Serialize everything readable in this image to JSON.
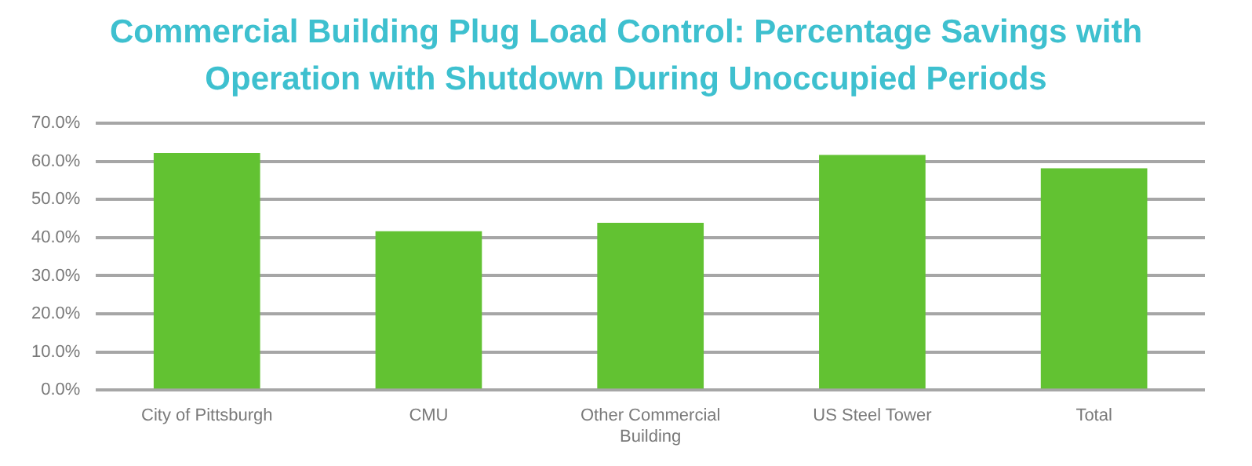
{
  "chart_data": {
    "type": "bar",
    "title": "Commercial Building Plug Load Control: Percentage Savings with Operation with Shutdown During Unoccupied Periods",
    "categories": [
      "City of Pittsburgh",
      "CMU",
      "Other Commercial Building",
      "US Steel Tower",
      "Total"
    ],
    "values": [
      62.2,
      41.7,
      43.9,
      61.7,
      58.2
    ],
    "color": "#62c232",
    "ylim": [
      0,
      70
    ],
    "yticks": [
      {
        "value": 0,
        "label": "0.0%"
      },
      {
        "value": 10,
        "label": "10.0%"
      },
      {
        "value": 20,
        "label": "20.0%"
      },
      {
        "value": 30,
        "label": "30.0%"
      },
      {
        "value": 40,
        "label": "40.0%"
      },
      {
        "value": 50,
        "label": "50.0%"
      },
      {
        "value": 60,
        "label": "60.0%"
      },
      {
        "value": 70,
        "label": "70.0%"
      }
    ],
    "grid": "y"
  }
}
